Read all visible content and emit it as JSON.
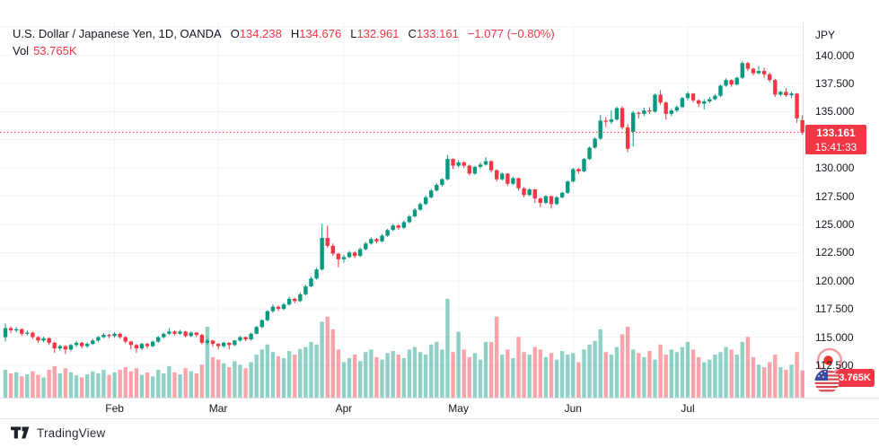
{
  "legend": {
    "title": "U.S. Dollar / Japanese Yen, 1D, OANDA",
    "ohlc": {
      "o_label": "O",
      "open": "134.238",
      "h_label": "H",
      "high": "134.676",
      "l_label": "L",
      "low": "132.961",
      "c_label": "C",
      "close": "133.161"
    },
    "change": "−1.077 (−0.80%)",
    "vol_label": "Vol",
    "vol_value": "53.765K"
  },
  "price_axis": {
    "currency": "JPY",
    "last_price_label": "133.161",
    "countdown": "15:41:33",
    "volume_label": "53.765K"
  },
  "footer": {
    "logo_text": "TradingView"
  },
  "colors": {
    "up": "#089981",
    "down": "#F23645",
    "grid": "#F0F3FA",
    "border": "#E0E3EB",
    "text": "#131722",
    "accent": "#F23645",
    "background": "#FFFFFF"
  },
  "chart_data": {
    "type": "candlestick",
    "symbol": "USD/JPY",
    "exchange": "OANDA",
    "timeframe": "1D",
    "title": "U.S. Dollar / Japanese Yen, 1D, OANDA",
    "last_price": 133.161,
    "last_change": -1.077,
    "last_change_pct": -0.8,
    "last_volume_k": 53.765,
    "volume_unit": "K",
    "grid": true,
    "y_axis": {
      "currency": "JPY",
      "ylim": [
        111.8,
        142.9
      ],
      "ticks": [
        {
          "label": "140.000",
          "price": 140.0
        },
        {
          "label": "137.500",
          "price": 137.5
        },
        {
          "label": "135.000",
          "price": 135.0
        },
        {
          "label": "132.500",
          "price": 132.5
        },
        {
          "label": "130.000",
          "price": 130.0
        },
        {
          "label": "127.500",
          "price": 127.5
        },
        {
          "label": "125.000",
          "price": 125.0
        },
        {
          "label": "122.500",
          "price": 122.5
        },
        {
          "label": "120.000",
          "price": 120.0
        },
        {
          "label": "117.500",
          "price": 117.5
        },
        {
          "label": "115.000",
          "price": 115.0
        },
        {
          "label": "112.500",
          "price": 112.5
        }
      ]
    },
    "x_axis": {
      "month_ticks": [
        {
          "label": "Feb",
          "index": 20
        },
        {
          "label": "Mar",
          "index": 39
        },
        {
          "label": "Apr",
          "index": 62
        },
        {
          "label": "May",
          "index": 83
        },
        {
          "label": "Jun",
          "index": 104
        },
        {
          "label": "Jul",
          "index": 125
        }
      ]
    },
    "candles_format": [
      "open",
      "high",
      "low",
      "close",
      "volume_k"
    ],
    "candles": [
      [
        115.0,
        116.2,
        114.6,
        115.8,
        55
      ],
      [
        115.8,
        115.95,
        115.35,
        115.6,
        48
      ],
      [
        115.6,
        115.9,
        115.45,
        115.7,
        50
      ],
      [
        115.7,
        115.8,
        115.1,
        115.3,
        42
      ],
      [
        115.3,
        115.6,
        115.15,
        115.4,
        46
      ],
      [
        115.4,
        115.5,
        114.85,
        115.0,
        52
      ],
      [
        115.0,
        115.1,
        114.5,
        114.7,
        45
      ],
      [
        114.7,
        115.05,
        114.55,
        114.9,
        40
      ],
      [
        114.9,
        115.0,
        114.3,
        114.5,
        55
      ],
      [
        114.5,
        114.6,
        113.6,
        114.0,
        62
      ],
      [
        114.0,
        114.35,
        113.8,
        114.2,
        48
      ],
      [
        114.2,
        114.3,
        113.5,
        113.9,
        58
      ],
      [
        113.9,
        114.4,
        113.75,
        114.3,
        50
      ],
      [
        114.3,
        114.65,
        114.1,
        114.5,
        44
      ],
      [
        114.5,
        114.6,
        114.0,
        114.2,
        40
      ],
      [
        114.2,
        114.55,
        114.05,
        114.4,
        46
      ],
      [
        114.4,
        114.85,
        114.3,
        114.7,
        52
      ],
      [
        114.7,
        115.1,
        114.55,
        115.0,
        48
      ],
      [
        115.0,
        115.35,
        114.9,
        115.2,
        55
      ],
      [
        115.2,
        115.3,
        114.9,
        115.1,
        45
      ],
      [
        115.1,
        115.45,
        114.95,
        115.3,
        50
      ],
      [
        115.3,
        115.4,
        114.85,
        115.0,
        55
      ],
      [
        115.0,
        115.1,
        114.45,
        114.6,
        60
      ],
      [
        114.6,
        114.7,
        113.9,
        114.3,
        52
      ],
      [
        114.3,
        114.4,
        113.6,
        114.0,
        58
      ],
      [
        114.0,
        114.5,
        113.85,
        114.4,
        45
      ],
      [
        114.4,
        114.5,
        114.0,
        114.2,
        50
      ],
      [
        114.2,
        114.7,
        114.1,
        114.6,
        42
      ],
      [
        114.6,
        115.1,
        114.5,
        115.0,
        55
      ],
      [
        115.0,
        115.4,
        114.9,
        115.3,
        48
      ],
      [
        115.3,
        115.8,
        115.2,
        115.5,
        62
      ],
      [
        115.5,
        115.6,
        115.15,
        115.3,
        50
      ],
      [
        115.3,
        115.65,
        115.2,
        115.5,
        46
      ],
      [
        115.5,
        115.55,
        114.95,
        115.1,
        58
      ],
      [
        115.1,
        115.5,
        115.0,
        115.4,
        52
      ],
      [
        115.4,
        115.45,
        115.0,
        115.2,
        48
      ],
      [
        115.2,
        115.3,
        114.35,
        114.5,
        65
      ],
      [
        114.5,
        114.85,
        114.3,
        114.7,
        140
      ],
      [
        114.7,
        114.75,
        114.15,
        114.4,
        80
      ],
      [
        114.4,
        114.5,
        113.9,
        114.2,
        75
      ],
      [
        114.2,
        114.6,
        114.05,
        114.5,
        68
      ],
      [
        114.5,
        114.55,
        113.9,
        114.3,
        60
      ],
      [
        114.3,
        114.75,
        114.2,
        114.7,
        72
      ],
      [
        114.7,
        115.1,
        114.6,
        115.0,
        65
      ],
      [
        115.0,
        115.05,
        114.65,
        114.8,
        58
      ],
      [
        114.8,
        115.4,
        114.7,
        115.3,
        70
      ],
      [
        115.3,
        116.0,
        115.25,
        115.9,
        85
      ],
      [
        115.9,
        116.6,
        115.8,
        116.5,
        95
      ],
      [
        116.5,
        117.4,
        116.4,
        117.3,
        105
      ],
      [
        117.3,
        117.9,
        117.15,
        117.7,
        90
      ],
      [
        117.7,
        117.8,
        117.3,
        117.5,
        82
      ],
      [
        117.5,
        118.05,
        117.4,
        117.9,
        78
      ],
      [
        117.9,
        118.6,
        117.8,
        118.4,
        92
      ],
      [
        118.4,
        118.5,
        118.0,
        118.2,
        85
      ],
      [
        118.2,
        118.95,
        118.1,
        118.8,
        96
      ],
      [
        118.8,
        119.65,
        118.7,
        119.5,
        100
      ],
      [
        119.5,
        120.35,
        119.4,
        120.2,
        110
      ],
      [
        120.2,
        121.15,
        120.1,
        121.0,
        105
      ],
      [
        121.0,
        125.05,
        120.9,
        123.8,
        150
      ],
      [
        123.8,
        124.9,
        122.9,
        123.1,
        160
      ],
      [
        123.1,
        123.3,
        122.2,
        122.4,
        135
      ],
      [
        122.4,
        122.5,
        121.2,
        121.9,
        95
      ],
      [
        121.9,
        122.3,
        121.6,
        122.1,
        70
      ],
      [
        122.1,
        122.65,
        122.0,
        122.5,
        78
      ],
      [
        122.5,
        122.6,
        122.0,
        122.2,
        85
      ],
      [
        122.2,
        122.95,
        122.1,
        122.8,
        72
      ],
      [
        122.8,
        123.45,
        122.7,
        123.3,
        90
      ],
      [
        123.3,
        123.85,
        123.2,
        123.7,
        95
      ],
      [
        123.7,
        123.8,
        123.3,
        123.5,
        80
      ],
      [
        123.5,
        124.15,
        123.4,
        124.0,
        75
      ],
      [
        124.0,
        124.6,
        123.9,
        124.5,
        88
      ],
      [
        124.5,
        125.05,
        124.4,
        124.9,
        92
      ],
      [
        124.9,
        125.0,
        124.5,
        124.7,
        85
      ],
      [
        124.7,
        125.35,
        124.6,
        125.2,
        78
      ],
      [
        125.2,
        125.85,
        125.1,
        125.7,
        95
      ],
      [
        125.7,
        126.45,
        125.6,
        126.3,
        100
      ],
      [
        126.3,
        126.95,
        126.2,
        126.8,
        90
      ],
      [
        126.8,
        127.55,
        126.7,
        127.4,
        85
      ],
      [
        127.4,
        128.15,
        127.3,
        128.0,
        105
      ],
      [
        128.0,
        128.65,
        127.9,
        128.5,
        110
      ],
      [
        128.5,
        129.1,
        128.35,
        129.0,
        95
      ],
      [
        129.0,
        131.15,
        128.9,
        130.8,
        195
      ],
      [
        130.8,
        130.85,
        129.9,
        130.2,
        90
      ],
      [
        130.2,
        130.7,
        130.05,
        130.5,
        130
      ],
      [
        130.5,
        130.6,
        130.0,
        130.2,
        95
      ],
      [
        130.2,
        130.3,
        129.35,
        129.5,
        80
      ],
      [
        129.5,
        130.2,
        129.4,
        130.1,
        88
      ],
      [
        130.1,
        130.5,
        129.95,
        130.3,
        75
      ],
      [
        130.3,
        130.95,
        130.2,
        130.6,
        110
      ],
      [
        130.6,
        130.7,
        129.6,
        129.8,
        110
      ],
      [
        129.8,
        129.9,
        128.8,
        129.0,
        160
      ],
      [
        129.0,
        129.6,
        128.9,
        129.5,
        85
      ],
      [
        129.5,
        129.55,
        128.4,
        128.6,
        95
      ],
      [
        128.6,
        129.2,
        128.5,
        129.1,
        78
      ],
      [
        129.1,
        129.15,
        128.0,
        128.2,
        120
      ],
      [
        128.2,
        128.3,
        127.4,
        127.6,
        90
      ],
      [
        127.6,
        128.2,
        127.5,
        128.1,
        85
      ],
      [
        128.1,
        128.15,
        126.9,
        127.3,
        100
      ],
      [
        127.3,
        127.4,
        126.5,
        126.9,
        95
      ],
      [
        126.9,
        127.6,
        126.8,
        127.5,
        80
      ],
      [
        127.5,
        127.55,
        126.4,
        126.8,
        88
      ],
      [
        126.8,
        127.5,
        126.7,
        127.4,
        75
      ],
      [
        127.4,
        127.9,
        127.3,
        127.8,
        92
      ],
      [
        127.8,
        128.9,
        127.7,
        128.8,
        85
      ],
      [
        128.8,
        130.0,
        128.7,
        129.9,
        88
      ],
      [
        129.9,
        130.0,
        129.5,
        129.7,
        70
      ],
      [
        129.7,
        130.9,
        129.6,
        130.8,
        95
      ],
      [
        130.8,
        131.9,
        130.7,
        131.8,
        105
      ],
      [
        131.8,
        132.7,
        131.7,
        132.6,
        112
      ],
      [
        132.6,
        134.7,
        132.5,
        134.2,
        135
      ],
      [
        134.2,
        134.5,
        133.6,
        134.1,
        90
      ],
      [
        134.1,
        135.1,
        133.9,
        134.3,
        85
      ],
      [
        134.3,
        135.45,
        134.2,
        135.3,
        100
      ],
      [
        135.3,
        135.5,
        133.4,
        133.6,
        125
      ],
      [
        133.6,
        133.9,
        131.4,
        131.7,
        140
      ],
      [
        133.2,
        135.05,
        131.9,
        134.9,
        95
      ],
      [
        134.9,
        135.0,
        134.4,
        134.8,
        88
      ],
      [
        134.8,
        135.35,
        134.6,
        135.1,
        80
      ],
      [
        135.1,
        135.4,
        134.8,
        135.0,
        92
      ],
      [
        135.0,
        136.6,
        134.9,
        136.5,
        75
      ],
      [
        136.5,
        136.9,
        135.6,
        135.8,
        105
      ],
      [
        135.8,
        135.9,
        134.3,
        134.8,
        85
      ],
      [
        134.8,
        135.25,
        134.6,
        135.1,
        95
      ],
      [
        135.1,
        135.55,
        134.95,
        135.4,
        90
      ],
      [
        135.4,
        136.3,
        135.3,
        136.2,
        100
      ],
      [
        136.2,
        136.75,
        136.0,
        136.6,
        110
      ],
      [
        136.6,
        136.65,
        135.8,
        136.0,
        95
      ],
      [
        136.0,
        136.1,
        135.4,
        135.7,
        80
      ],
      [
        135.7,
        136.1,
        135.2,
        135.9,
        70
      ],
      [
        135.9,
        136.3,
        135.75,
        136.1,
        75
      ],
      [
        136.1,
        136.55,
        136.0,
        136.4,
        85
      ],
      [
        136.4,
        137.4,
        136.3,
        137.3,
        90
      ],
      [
        137.3,
        137.95,
        137.2,
        137.8,
        100
      ],
      [
        137.8,
        137.85,
        137.2,
        137.4,
        95
      ],
      [
        137.4,
        138.1,
        137.3,
        138.0,
        85
      ],
      [
        138.0,
        139.45,
        137.9,
        139.3,
        110
      ],
      [
        139.3,
        139.4,
        138.6,
        138.8,
        120
      ],
      [
        138.8,
        138.9,
        138.2,
        138.4,
        80
      ],
      [
        138.4,
        139.05,
        138.3,
        138.6,
        65
      ],
      [
        138.6,
        138.9,
        138.0,
        138.3,
        60
      ],
      [
        138.3,
        138.45,
        137.6,
        137.8,
        70
      ],
      [
        137.8,
        137.9,
        136.3,
        136.5,
        85
      ],
      [
        136.5,
        136.85,
        136.35,
        136.75,
        60
      ],
      [
        136.75,
        137.1,
        136.3,
        136.45,
        55
      ],
      [
        136.45,
        136.75,
        136.2,
        136.6,
        65
      ],
      [
        136.6,
        136.65,
        134.0,
        134.4,
        90
      ],
      [
        134.238,
        134.676,
        132.961,
        133.161,
        53.765
      ]
    ]
  }
}
